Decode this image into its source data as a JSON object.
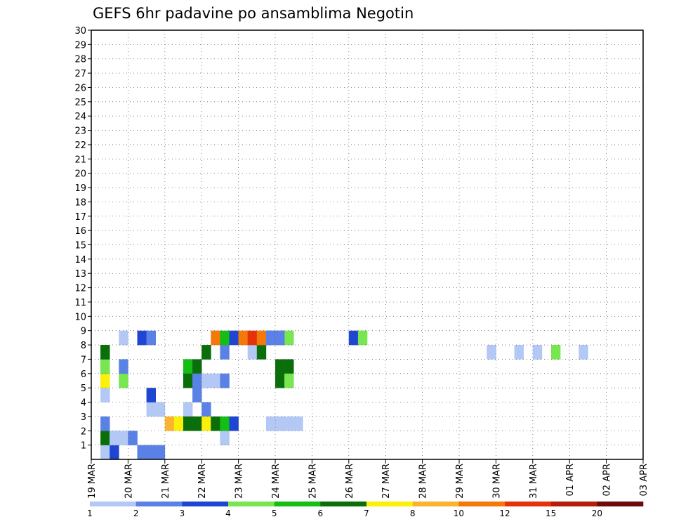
{
  "chart_data": {
    "type": "heatmap",
    "title": "GEFS 6hr padavine po ansamblima Negotin",
    "xlabel": "",
    "ylabel": "",
    "x_tick_labels": [
      "19 MAR",
      "20 MAR",
      "21 MAR",
      "22 MAR",
      "23 MAR",
      "24 MAR",
      "25 MAR",
      "26 MAR",
      "27 MAR",
      "28 MAR",
      "29 MAR",
      "30 MAR",
      "31 MAR",
      "01 APR",
      "02 APR",
      "03 APR"
    ],
    "x_unit": "6-hour step from 19 MAR 00Z",
    "xlim": [
      0,
      60
    ],
    "y_tick_labels": [
      "1",
      "2",
      "3",
      "4",
      "5",
      "6",
      "7",
      "8",
      "9",
      "10",
      "11",
      "12",
      "13",
      "14",
      "15",
      "16",
      "17",
      "18",
      "19",
      "20",
      "21",
      "22",
      "23",
      "24",
      "25",
      "26",
      "27",
      "28",
      "29",
      "30"
    ],
    "ylim": [
      0,
      30
    ],
    "grid": true,
    "colorbar": {
      "labels": [
        "1",
        "2",
        "3",
        "4",
        "5",
        "6",
        "7",
        "8",
        "10",
        "12",
        "15",
        "20"
      ],
      "colors": [
        "#b4c8f5",
        "#5a82e6",
        "#1e46d2",
        "#78e650",
        "#14be14",
        "#0a6e0a",
        "#faf00a",
        "#fab42d",
        "#f5780a",
        "#e6320a",
        "#b41e0a",
        "#6e0a0a"
      ]
    },
    "cells": [
      [
        1,
        0,
        0
      ],
      [
        6,
        0,
        1
      ],
      [
        7,
        0,
        1
      ],
      [
        14,
        1,
        0
      ],
      [
        2,
        0,
        2
      ],
      [
        1,
        1,
        5
      ],
      [
        2,
        1,
        3
      ],
      [
        1,
        2,
        1
      ],
      [
        7,
        3,
        0
      ],
      [
        6,
        3,
        0
      ],
      [
        1,
        4,
        0
      ],
      [
        1,
        5,
        10
      ],
      [
        1,
        5,
        0
      ],
      [
        3,
        5,
        3
      ],
      [
        1,
        5,
        6
      ],
      [
        3,
        6,
        1
      ],
      [
        10,
        6,
        1
      ],
      [
        1,
        6,
        2
      ],
      [
        1,
        6,
        3
      ],
      [
        1,
        7,
        4
      ],
      [
        1,
        7,
        5
      ],
      [
        12,
        7,
        2
      ],
      [
        12,
        7,
        3
      ],
      [
        12,
        7,
        5
      ],
      [
        14,
        7,
        1
      ],
      [
        17,
        7,
        0
      ],
      [
        18,
        7,
        5
      ],
      [
        43,
        7,
        0
      ],
      [
        46,
        7,
        0
      ],
      [
        48,
        7,
        0
      ],
      [
        50,
        7,
        3
      ],
      [
        53,
        7,
        0
      ],
      [
        3,
        8,
        0
      ],
      [
        19,
        8,
        1
      ],
      [
        20,
        8,
        1
      ],
      [
        21,
        8,
        3
      ],
      [
        28,
        8,
        2
      ],
      [
        29,
        8,
        3
      ],
      [
        5,
        8,
        2
      ],
      [
        6,
        8,
        1
      ],
      [
        13,
        8,
        8
      ],
      [
        14,
        8,
        4
      ],
      [
        15,
        8,
        2
      ],
      [
        16,
        8,
        8
      ],
      [
        17,
        8,
        9
      ],
      [
        18,
        8,
        8
      ],
      [
        19,
        8,
        1
      ],
      [
        20,
        8,
        1
      ],
      [
        20,
        6,
        5
      ],
      [
        21,
        6,
        5
      ],
      [
        10,
        6,
        4
      ],
      [
        11,
        6,
        5
      ],
      [
        20,
        5,
        5
      ],
      [
        21,
        5,
        3
      ],
      [
        10,
        5,
        5
      ],
      [
        11,
        5,
        1
      ],
      [
        12,
        5,
        0
      ],
      [
        13,
        5,
        0
      ],
      [
        14,
        5,
        1
      ],
      [
        6,
        4,
        2
      ],
      [
        11,
        4,
        1
      ],
      [
        10,
        3,
        0
      ],
      [
        12,
        3,
        1
      ],
      [
        8,
        2,
        7
      ],
      [
        9,
        2,
        6
      ],
      [
        10,
        2,
        5
      ],
      [
        11,
        2,
        5
      ],
      [
        12,
        2,
        6
      ],
      [
        13,
        2,
        5
      ],
      [
        14,
        2,
        4
      ],
      [
        15,
        2,
        2
      ],
      [
        19,
        2,
        0
      ],
      [
        20,
        2,
        0
      ],
      [
        21,
        2,
        0
      ],
      [
        22,
        2,
        0
      ],
      [
        2,
        1,
        0
      ],
      [
        3,
        1,
        0
      ],
      [
        4,
        1,
        1
      ],
      [
        5,
        0,
        1
      ],
      [
        6,
        0,
        1
      ]
    ]
  }
}
